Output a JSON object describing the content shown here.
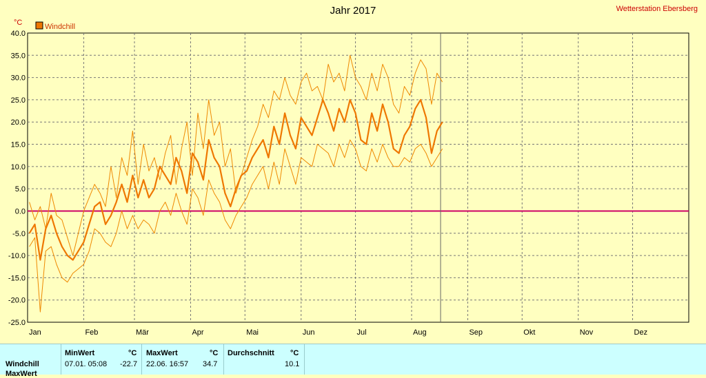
{
  "chart_data": {
    "type": "line",
    "title": "Jahr 2017",
    "station": "Wetterstation Ebersberg",
    "unit": "°C",
    "legend": [
      {
        "name": "Windchill",
        "color": "#ee7700"
      }
    ],
    "ylim": [
      -25,
      40
    ],
    "yticks": [
      "-25.0",
      "-20.0",
      "-15.0",
      "-10.0",
      "-5.0",
      "0.0",
      "5.0",
      "10.0",
      "15.0",
      "20.0",
      "25.0",
      "30.0",
      "35.0",
      "40.0"
    ],
    "months": [
      "Jan",
      "Feb",
      "Mär",
      "Apr",
      "Mai",
      "Jun",
      "Jul",
      "Aug",
      "Sep",
      "Okt",
      "Nov",
      "Dez"
    ],
    "xlim_days": [
      0,
      365
    ],
    "current_day": 228,
    "zero_line_color": "#cc0066",
    "series": [
      {
        "name": "Windchill",
        "role": "max",
        "color": "#ee8800",
        "x": [
          1,
          4,
          7,
          10,
          13,
          16,
          19,
          22,
          25,
          28,
          31,
          34,
          37,
          40,
          43,
          46,
          49,
          52,
          55,
          58,
          61,
          64,
          67,
          70,
          73,
          76,
          79,
          82,
          85,
          88,
          91,
          94,
          97,
          100,
          103,
          106,
          109,
          112,
          115,
          118,
          121,
          124,
          127,
          130,
          133,
          136,
          139,
          142,
          145,
          148,
          151,
          154,
          157,
          160,
          163,
          166,
          169,
          172,
          175,
          178,
          181,
          184,
          187,
          190,
          193,
          196,
          199,
          202,
          205,
          208,
          211,
          214,
          217,
          220,
          223,
          226,
          229
        ],
        "y": [
          2,
          -2,
          1,
          -4,
          4,
          -1,
          -2,
          -6,
          -10,
          -5,
          0,
          3,
          6,
          4,
          1,
          10,
          3,
          12,
          8,
          18,
          6,
          15,
          9,
          12,
          7,
          13,
          17,
          6,
          14,
          20,
          8,
          22,
          14,
          25,
          17,
          20,
          10,
          14,
          4,
          8,
          12,
          16,
          19,
          24,
          21,
          27,
          25,
          30,
          26,
          24,
          29,
          31,
          27,
          28,
          25,
          33,
          29,
          31,
          27,
          35,
          30,
          28,
          25,
          31,
          27,
          33,
          30,
          24,
          22,
          28,
          26,
          31,
          34,
          32,
          24,
          31,
          29
        ]
      },
      {
        "name": "Windchill",
        "role": "mean",
        "color": "#ee7700",
        "x": [
          1,
          4,
          7,
          10,
          13,
          16,
          19,
          22,
          25,
          28,
          31,
          34,
          37,
          40,
          43,
          46,
          49,
          52,
          55,
          58,
          61,
          64,
          67,
          70,
          73,
          76,
          79,
          82,
          85,
          88,
          91,
          94,
          97,
          100,
          103,
          106,
          109,
          112,
          115,
          118,
          121,
          124,
          127,
          130,
          133,
          136,
          139,
          142,
          145,
          148,
          151,
          154,
          157,
          160,
          163,
          166,
          169,
          172,
          175,
          178,
          181,
          184,
          187,
          190,
          193,
          196,
          199,
          202,
          205,
          208,
          211,
          214,
          217,
          220,
          223,
          226,
          229
        ],
        "y": [
          -5,
          -3,
          -11,
          -4,
          -1,
          -5,
          -8,
          -10,
          -11,
          -9,
          -7,
          -3,
          1,
          2,
          -3,
          -1,
          2,
          6,
          2,
          8,
          3,
          7,
          3,
          5,
          10,
          8,
          6,
          12,
          9,
          4,
          13,
          11,
          7,
          16,
          12,
          10,
          4,
          1,
          5,
          8,
          9,
          12,
          14,
          16,
          12,
          19,
          15,
          22,
          17,
          14,
          21,
          19,
          17,
          21,
          25,
          22,
          18,
          23,
          20,
          25,
          22,
          16,
          15,
          22,
          18,
          24,
          20,
          14,
          13,
          17,
          19,
          23,
          25,
          21,
          13,
          18,
          20
        ]
      },
      {
        "name": "Windchill",
        "role": "min",
        "color": "#ee8800",
        "x": [
          1,
          4,
          7,
          10,
          13,
          16,
          19,
          22,
          25,
          28,
          31,
          34,
          37,
          40,
          43,
          46,
          49,
          52,
          55,
          58,
          61,
          64,
          67,
          70,
          73,
          76,
          79,
          82,
          85,
          88,
          91,
          94,
          97,
          100,
          103,
          106,
          109,
          112,
          115,
          118,
          121,
          124,
          127,
          130,
          133,
          136,
          139,
          142,
          145,
          148,
          151,
          154,
          157,
          160,
          163,
          166,
          169,
          172,
          175,
          178,
          181,
          184,
          187,
          190,
          193,
          196,
          199,
          202,
          205,
          208,
          211,
          214,
          217,
          220,
          223,
          226,
          229
        ],
        "y": [
          -8,
          -6,
          -22.7,
          -9,
          -8,
          -12,
          -15,
          -16,
          -14,
          -13,
          -12,
          -9,
          -4,
          -5,
          -7,
          -8,
          -5,
          0,
          -4,
          -1,
          -4,
          -2,
          -3,
          -5,
          0,
          2,
          -1,
          4,
          0,
          -3,
          5,
          3,
          -1,
          7,
          4,
          2,
          -2,
          -4,
          -1,
          1,
          3,
          6,
          8,
          10,
          5,
          11,
          6,
          14,
          10,
          6,
          12,
          11,
          10,
          15,
          14,
          13,
          10,
          15,
          12,
          16,
          14,
          10,
          9,
          14,
          11,
          15,
          12,
          10,
          10,
          12,
          11,
          14,
          15,
          13,
          10,
          12,
          14
        ]
      }
    ]
  },
  "table": {
    "row_label": "Windchill",
    "row_label2": "MaxWert",
    "min_header": "MinWert",
    "max_header": "MaxWert",
    "avg_header": "Durchschnitt",
    "unit": "°C",
    "min_time": "07.01.  05:08",
    "min_value": "-22.7",
    "max_time": "22.06.  16:57",
    "max_value": "34.7",
    "avg_value": "10.1"
  }
}
